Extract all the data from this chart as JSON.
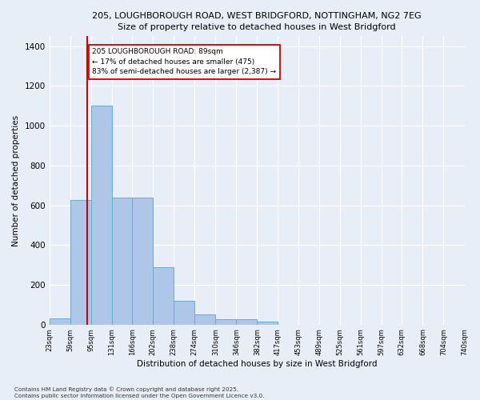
{
  "title_line1": "205, LOUGHBOROUGH ROAD, WEST BRIDGFORD, NOTTINGHAM, NG2 7EG",
  "title_line2": "Size of property relative to detached houses in West Bridgford",
  "xlabel": "Distribution of detached houses by size in West Bridgford",
  "ylabel": "Number of detached properties",
  "bar_values": [
    30,
    625,
    1100,
    640,
    640,
    290,
    120,
    50,
    25,
    25,
    15,
    0,
    0,
    0,
    0,
    0,
    0,
    0,
    0,
    0
  ],
  "bin_labels": [
    "23sqm",
    "59sqm",
    "95sqm",
    "131sqm",
    "166sqm",
    "202sqm",
    "238sqm",
    "274sqm",
    "310sqm",
    "346sqm",
    "382sqm",
    "417sqm",
    "453sqm",
    "489sqm",
    "525sqm",
    "561sqm",
    "597sqm",
    "632sqm",
    "668sqm",
    "704sqm",
    "740sqm"
  ],
  "bar_color": "#aec6e8",
  "bar_edge_color": "#6aaad4",
  "bg_color": "#e8eef8",
  "grid_color": "#ffffff",
  "fig_bg_color": "#e8eef8",
  "vline_color": "#cc0000",
  "annotation_text": "205 LOUGHBOROUGH ROAD: 89sqm\n← 17% of detached houses are smaller (475)\n83% of semi-detached houses are larger (2,387) →",
  "annotation_box_edgecolor": "#cc0000",
  "ylim": [
    0,
    1450
  ],
  "yticks": [
    0,
    200,
    400,
    600,
    800,
    1000,
    1200,
    1400
  ],
  "footnote": "Contains HM Land Registry data © Crown copyright and database right 2025.\nContains public sector information licensed under the Open Government Licence v3.0."
}
